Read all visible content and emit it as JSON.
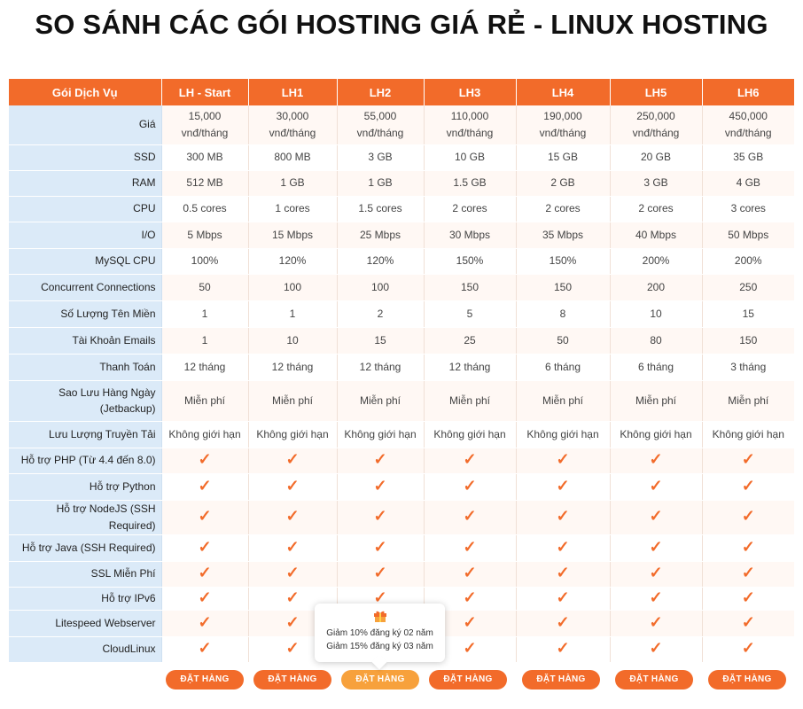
{
  "title": "SO SÁNH CÁC GÓI HOSTING GIÁ RẺ - LINUX HOSTING",
  "header": {
    "feature_col": "Gói Dịch Vụ",
    "plans": [
      "LH - Start",
      "LH1",
      "LH2",
      "LH3",
      "LH4",
      "LH5",
      "LH6"
    ]
  },
  "rows": [
    {
      "label": "Giá",
      "values": [
        "15,000 vnđ/tháng",
        "30,000 vnđ/tháng",
        "55,000 vnđ/tháng",
        "110,000 vnđ/tháng",
        "190,000 vnđ/tháng",
        "250,000 vnđ/tháng",
        "450,000 vnđ/tháng"
      ]
    },
    {
      "label": "SSD",
      "values": [
        "300 MB",
        "800 MB",
        "3 GB",
        "10 GB",
        "15 GB",
        "20 GB",
        "35 GB"
      ]
    },
    {
      "label": "RAM",
      "values": [
        "512 MB",
        "1 GB",
        "1 GB",
        "1.5 GB",
        "2 GB",
        "3 GB",
        "4 GB"
      ]
    },
    {
      "label": "CPU",
      "values": [
        "0.5 cores",
        "1 cores",
        "1.5 cores",
        "2 cores",
        "2 cores",
        "2 cores",
        "3 cores"
      ]
    },
    {
      "label": "I/O",
      "values": [
        "5 Mbps",
        "15 Mbps",
        "25 Mbps",
        "30 Mbps",
        "35 Mbps",
        "40 Mbps",
        "50 Mbps"
      ]
    },
    {
      "label": "MySQL CPU",
      "values": [
        "100%",
        "120%",
        "120%",
        "150%",
        "150%",
        "200%",
        "200%"
      ]
    },
    {
      "label": "Concurrent Connections",
      "values": [
        "50",
        "100",
        "100",
        "150",
        "150",
        "200",
        "250"
      ]
    },
    {
      "label": "Số Lượng Tên Miền",
      "values": [
        "1",
        "1",
        "2",
        "5",
        "8",
        "10",
        "15"
      ]
    },
    {
      "label": "Tài Khoản Emails",
      "values": [
        "1",
        "10",
        "15",
        "25",
        "50",
        "80",
        "150"
      ]
    },
    {
      "label": "Thanh Toán",
      "values": [
        "12 tháng",
        "12 tháng",
        "12 tháng",
        "12 tháng",
        "6 tháng",
        "6 tháng",
        "3 tháng"
      ]
    },
    {
      "label": "Sao Lưu Hàng Ngày (Jetbackup)",
      "values": [
        "Miễn phí",
        "Miễn phí",
        "Miễn phí",
        "Miễn phí",
        "Miễn phí",
        "Miễn phí",
        "Miễn phí"
      ]
    },
    {
      "label": "Lưu Lượng Truyền Tải",
      "values": [
        "Không giới hạn",
        "Không giới hạn",
        "Không giới hạn",
        "Không giới hạn",
        "Không giới hạn",
        "Không giới hạn",
        "Không giới hạn"
      ]
    }
  ],
  "check_rows": [
    "Hỗ trợ PHP (Từ 4.4 đến 8.0)",
    "Hỗ trợ Python",
    "Hỗ trợ NodeJS (SSH Required)",
    "Hỗ trợ Java (SSH Required)",
    "SSL Miễn Phí",
    "Hỗ trợ IPv6",
    "Litespeed Webserver",
    "CloudLinux"
  ],
  "check_glyph": "✓",
  "order_label": "ĐẶT HÀNG",
  "highlighted_plan": "LH2",
  "promo": {
    "icon": "gift-icon",
    "line1": "Giảm 10% đăng ký 02 năm",
    "line2": "Giảm 15% đăng ký 03 năm"
  },
  "colors": {
    "accent": "#f26b2a",
    "accent_light": "#f7a13c",
    "feature_bg": "#dbeaf8",
    "row_alt": "#fff8f4"
  }
}
